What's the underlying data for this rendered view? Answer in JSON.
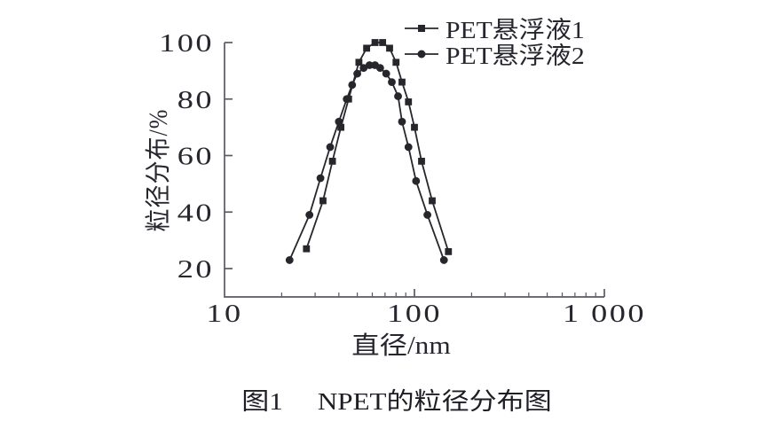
{
  "figure": {
    "caption": {
      "index": "图1",
      "title": "NPET的粒径分布图"
    }
  },
  "chart_data": {
    "type": "line",
    "x_scale": "log",
    "xlabel": "直径/nm",
    "ylabel": "粒径分布/%",
    "xlim": [
      10,
      1000
    ],
    "ylim": [
      10,
      100
    ],
    "grid": false,
    "legend_position": "top-right",
    "x_ticks": [
      {
        "value": 10,
        "label": "10"
      },
      {
        "value": 100,
        "label": "100"
      },
      {
        "value": 1000,
        "label": "1 000"
      }
    ],
    "x_minor_ticks": [
      20,
      30,
      40,
      50,
      60,
      70,
      80,
      90,
      200,
      300,
      400,
      500,
      600,
      700,
      800,
      900
    ],
    "y_ticks": [
      {
        "value": 20,
        "label": "20"
      },
      {
        "value": 40,
        "label": "40"
      },
      {
        "value": 60,
        "label": "60"
      },
      {
        "value": 80,
        "label": "80"
      },
      {
        "value": 100,
        "label": "100"
      }
    ],
    "series": [
      {
        "name": "PET悬浮液1",
        "marker": "square",
        "color": "#26262c",
        "points": [
          [
            27,
            27
          ],
          [
            33,
            44
          ],
          [
            37,
            58
          ],
          [
            41,
            70
          ],
          [
            45,
            80
          ],
          [
            51,
            93
          ],
          [
            56,
            98
          ],
          [
            62,
            100
          ],
          [
            68,
            100
          ],
          [
            74,
            98
          ],
          [
            80,
            93
          ],
          [
            86,
            86
          ],
          [
            93,
            79
          ],
          [
            100,
            70
          ],
          [
            109,
            58
          ],
          [
            124,
            44
          ],
          [
            151,
            26
          ]
        ]
      },
      {
        "name": "PET悬浮液2",
        "marker": "circle",
        "color": "#26262c",
        "points": [
          [
            22,
            23
          ],
          [
            28,
            39
          ],
          [
            32,
            52
          ],
          [
            36,
            63
          ],
          [
            40,
            72
          ],
          [
            44,
            80
          ],
          [
            47,
            85
          ],
          [
            50,
            89
          ],
          [
            54,
            91
          ],
          [
            58,
            92
          ],
          [
            62,
            92
          ],
          [
            66,
            91
          ],
          [
            71,
            89
          ],
          [
            76,
            86
          ],
          [
            82,
            81
          ],
          [
            86,
            72
          ],
          [
            93,
            63
          ],
          [
            102,
            51
          ],
          [
            117,
            39
          ],
          [
            143,
            23
          ]
        ]
      }
    ],
    "colors": {
      "ink": "#26262e",
      "axis": "#5a5a62"
    }
  }
}
